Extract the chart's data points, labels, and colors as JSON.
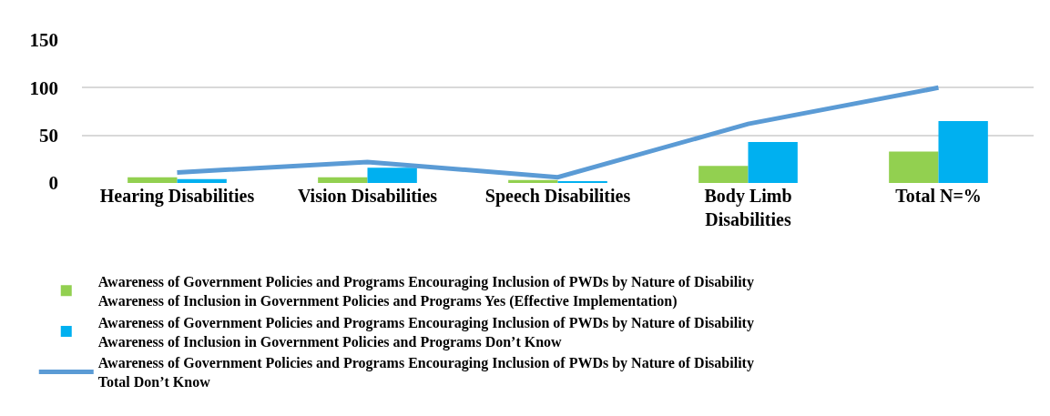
{
  "chart_data": {
    "type": "bar",
    "categories": [
      "Hearing Disabilities",
      "Vision Disabilities",
      "Speech Disabilities",
      "Body Limb Disabilities",
      "Total N=%"
    ],
    "series": [
      {
        "name": "Awareness of Government Policies and Programs Encouraging Inclusion of PWDs by Nature of Disability Awareness of Inclusion in Government Policies and Programs Yes (Effective Implementation)",
        "color": "#92d050",
        "values": [
          6,
          6,
          3,
          18,
          33
        ]
      },
      {
        "name": "Awareness of Government Policies and Programs Encouraging Inclusion of PWDs by Nature of Disability Awareness of Inclusion in Government Policies and Programs Don’t Know",
        "color": "#00b0f0",
        "values": [
          4,
          16,
          1,
          43,
          65
        ]
      },
      {
        "name": "Awareness of Government Policies and Programs Encouraging Inclusion of PWDs by Nature of Disability Total Don’t Know",
        "type": "line",
        "color": "#5b9bd5",
        "values": [
          11,
          22,
          6,
          62,
          100
        ],
        "line_style": "solid",
        "marker": "none"
      }
    ],
    "ylim": [
      0,
      150
    ],
    "yticks": [
      0,
      50,
      100,
      150
    ],
    "grid": "y",
    "legend": "bottom"
  }
}
